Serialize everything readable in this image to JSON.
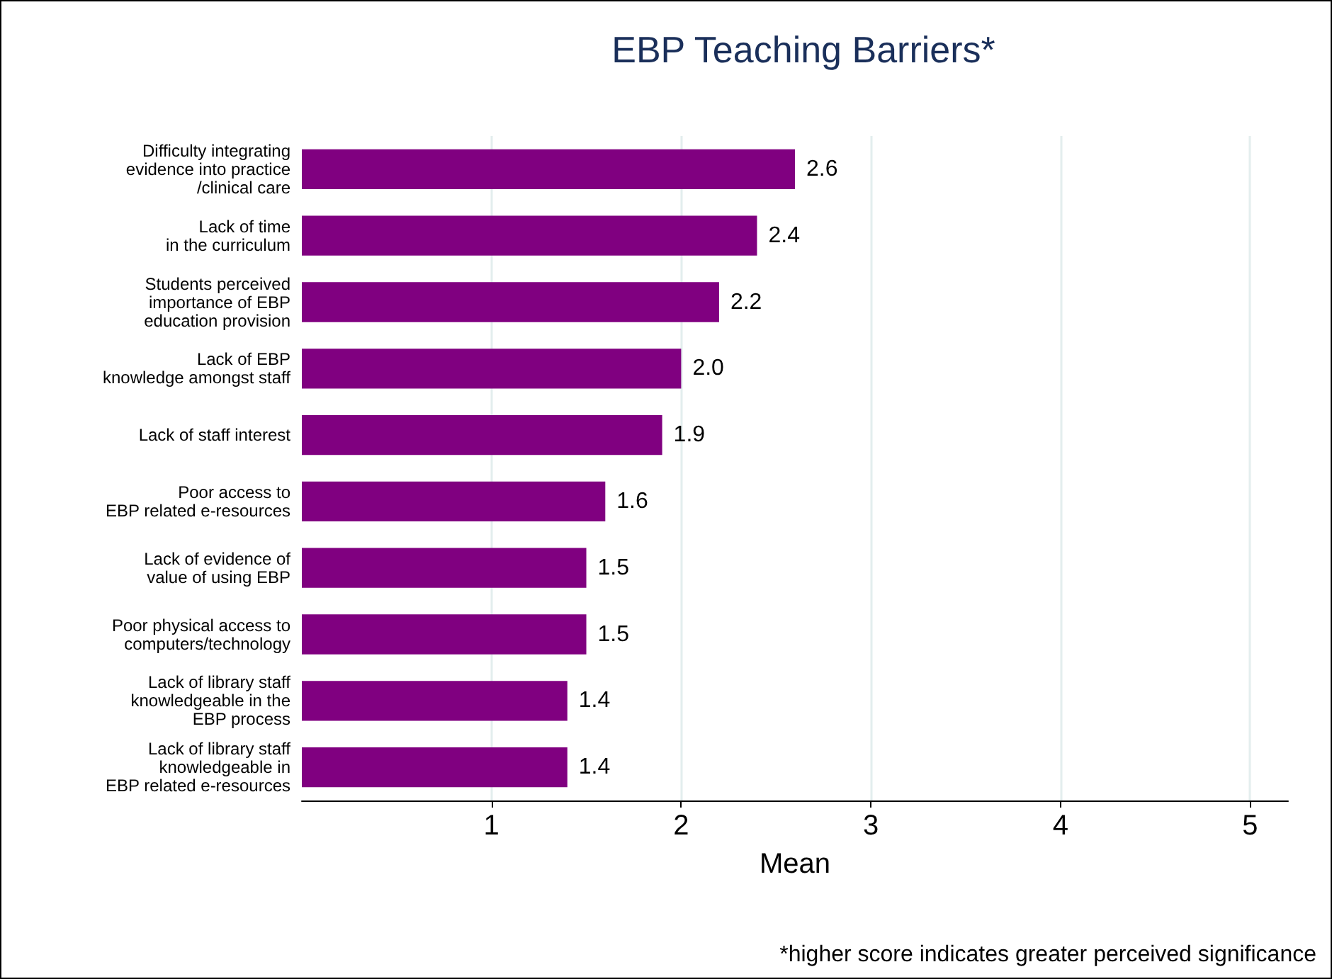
{
  "chart_data": {
    "type": "bar",
    "orientation": "horizontal",
    "title": "EBP Teaching Barriers*",
    "xlabel": "Mean",
    "categories": [
      "Difficulty integrating\nevidence into practice\n/clinical care",
      "Lack of time\nin the curriculum",
      "Students perceived\nimportance of EBP\neducation provision",
      "Lack of EBP\nknowledge amongst staff",
      "Lack of staff interest",
      "Poor access to\nEBP related e-resources",
      "Lack of evidence of\nvalue of using EBP",
      "Poor physical access to\ncomputers/technology",
      "Lack of library staff\nknowledgeable in the\nEBP process",
      "Lack of library staff\nknowledgeable in\nEBP related e-resources"
    ],
    "values": [
      2.6,
      2.4,
      2.2,
      2.0,
      1.9,
      1.6,
      1.5,
      1.5,
      1.4,
      1.4
    ],
    "value_labels": [
      "2.6",
      "2.4",
      "2.2",
      "2.0",
      "1.9",
      "1.6",
      "1.5",
      "1.5",
      "1.4",
      "1.4"
    ],
    "color": "#800080",
    "xlim": [
      0,
      5.2
    ],
    "xticks": [
      1,
      2,
      3,
      4,
      5
    ],
    "grid": "x",
    "annotations": [
      "*higher score indicates greater perceived significance"
    ]
  }
}
